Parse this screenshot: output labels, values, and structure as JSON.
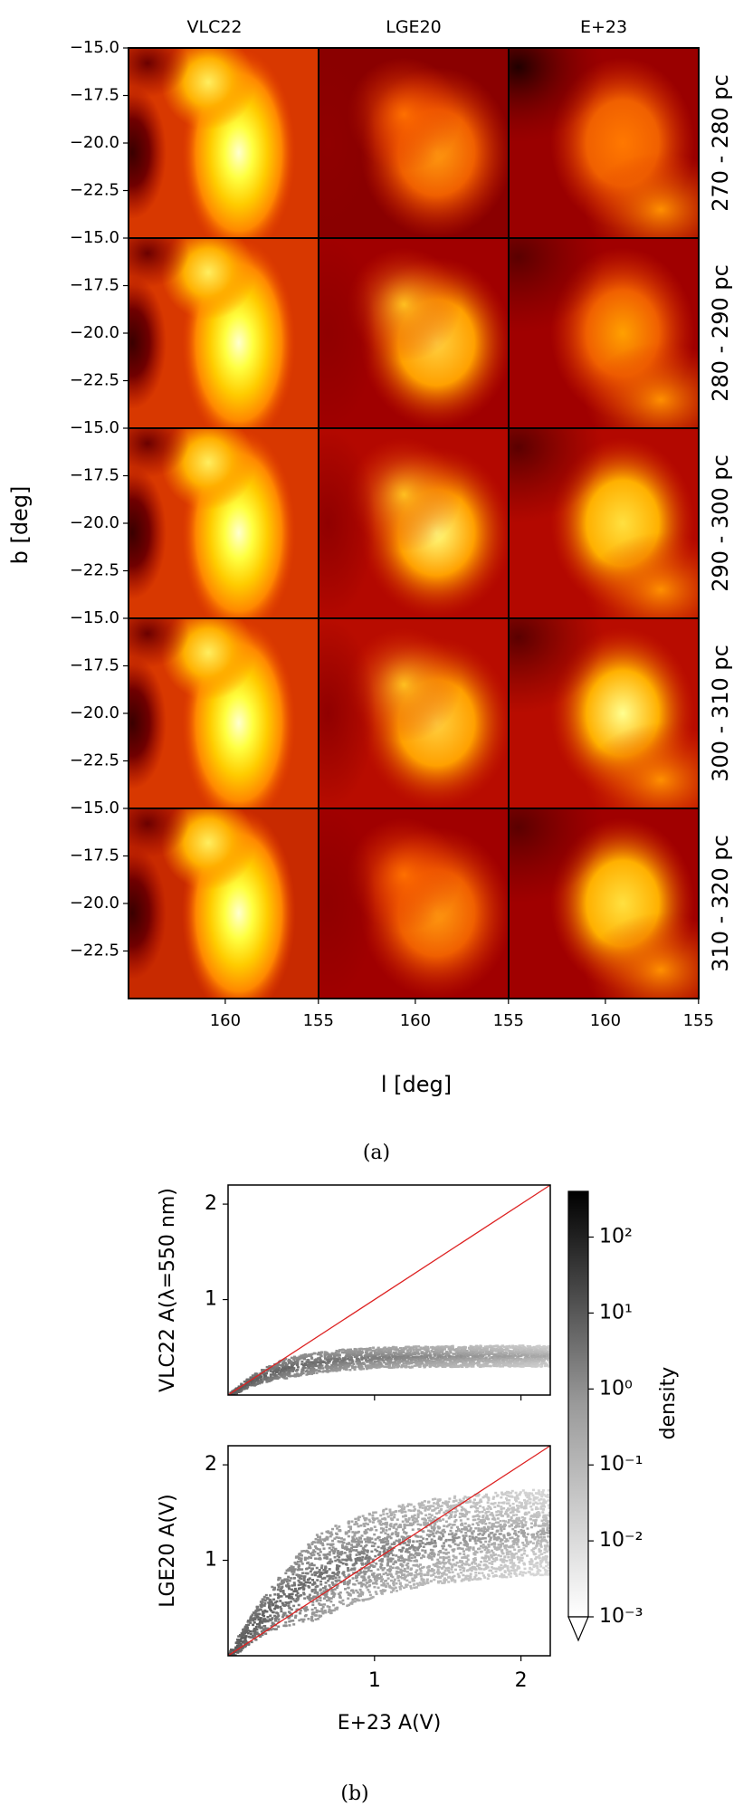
{
  "figure": {
    "panel_a_caption": "(a)",
    "panel_b_caption": "(b)"
  },
  "chart_data": [
    {
      "type": "heatmap",
      "columns": [
        "VLC22",
        "LGE20",
        "E+23"
      ],
      "rows": [
        "270 - 280 pc",
        "280 - 290 pc",
        "290 - 300 pc",
        "300 - 310 pc",
        "310 - 320 pc"
      ],
      "xlabel": "l [deg]",
      "ylabel": "b [deg]",
      "xlim": [
        165,
        155
      ],
      "ylim": [
        -25,
        -15
      ],
      "xticks": [
        160,
        155
      ],
      "yticks": [
        -15.0,
        -17.5,
        -20.0,
        -22.5
      ],
      "ytick_labels": [
        "−15.0",
        "−17.5",
        "−20.0",
        "−22.5"
      ],
      "colormap": "hot"
    },
    {
      "type": "heatmap",
      "panels": [
        "VLC22 A(λ=550 nm)",
        "LGE20 A(V)"
      ],
      "ylabels": [
        "VLC22 A(λ=550 nm)",
        "LGE20 A(V)"
      ],
      "xlabel": "E+23 A(V)",
      "xlim": [
        0,
        2.2
      ],
      "ylim": [
        0,
        2.2
      ],
      "xticks": [
        1,
        2
      ],
      "yticks": [
        1,
        2
      ],
      "reference_line": "y = x",
      "reference_line_color": "#dd2222",
      "colorbar": {
        "label": "density",
        "scale": "log",
        "ticks": [
          "10²",
          "10¹",
          "10⁰",
          "10⁻¹",
          "10⁻²",
          "10⁻³"
        ],
        "range": [
          0.001,
          400
        ],
        "extend": "min",
        "colormap": "Greys"
      }
    }
  ],
  "colors": {
    "frame": "#000000",
    "one_to_one_line": "#dd2222"
  }
}
